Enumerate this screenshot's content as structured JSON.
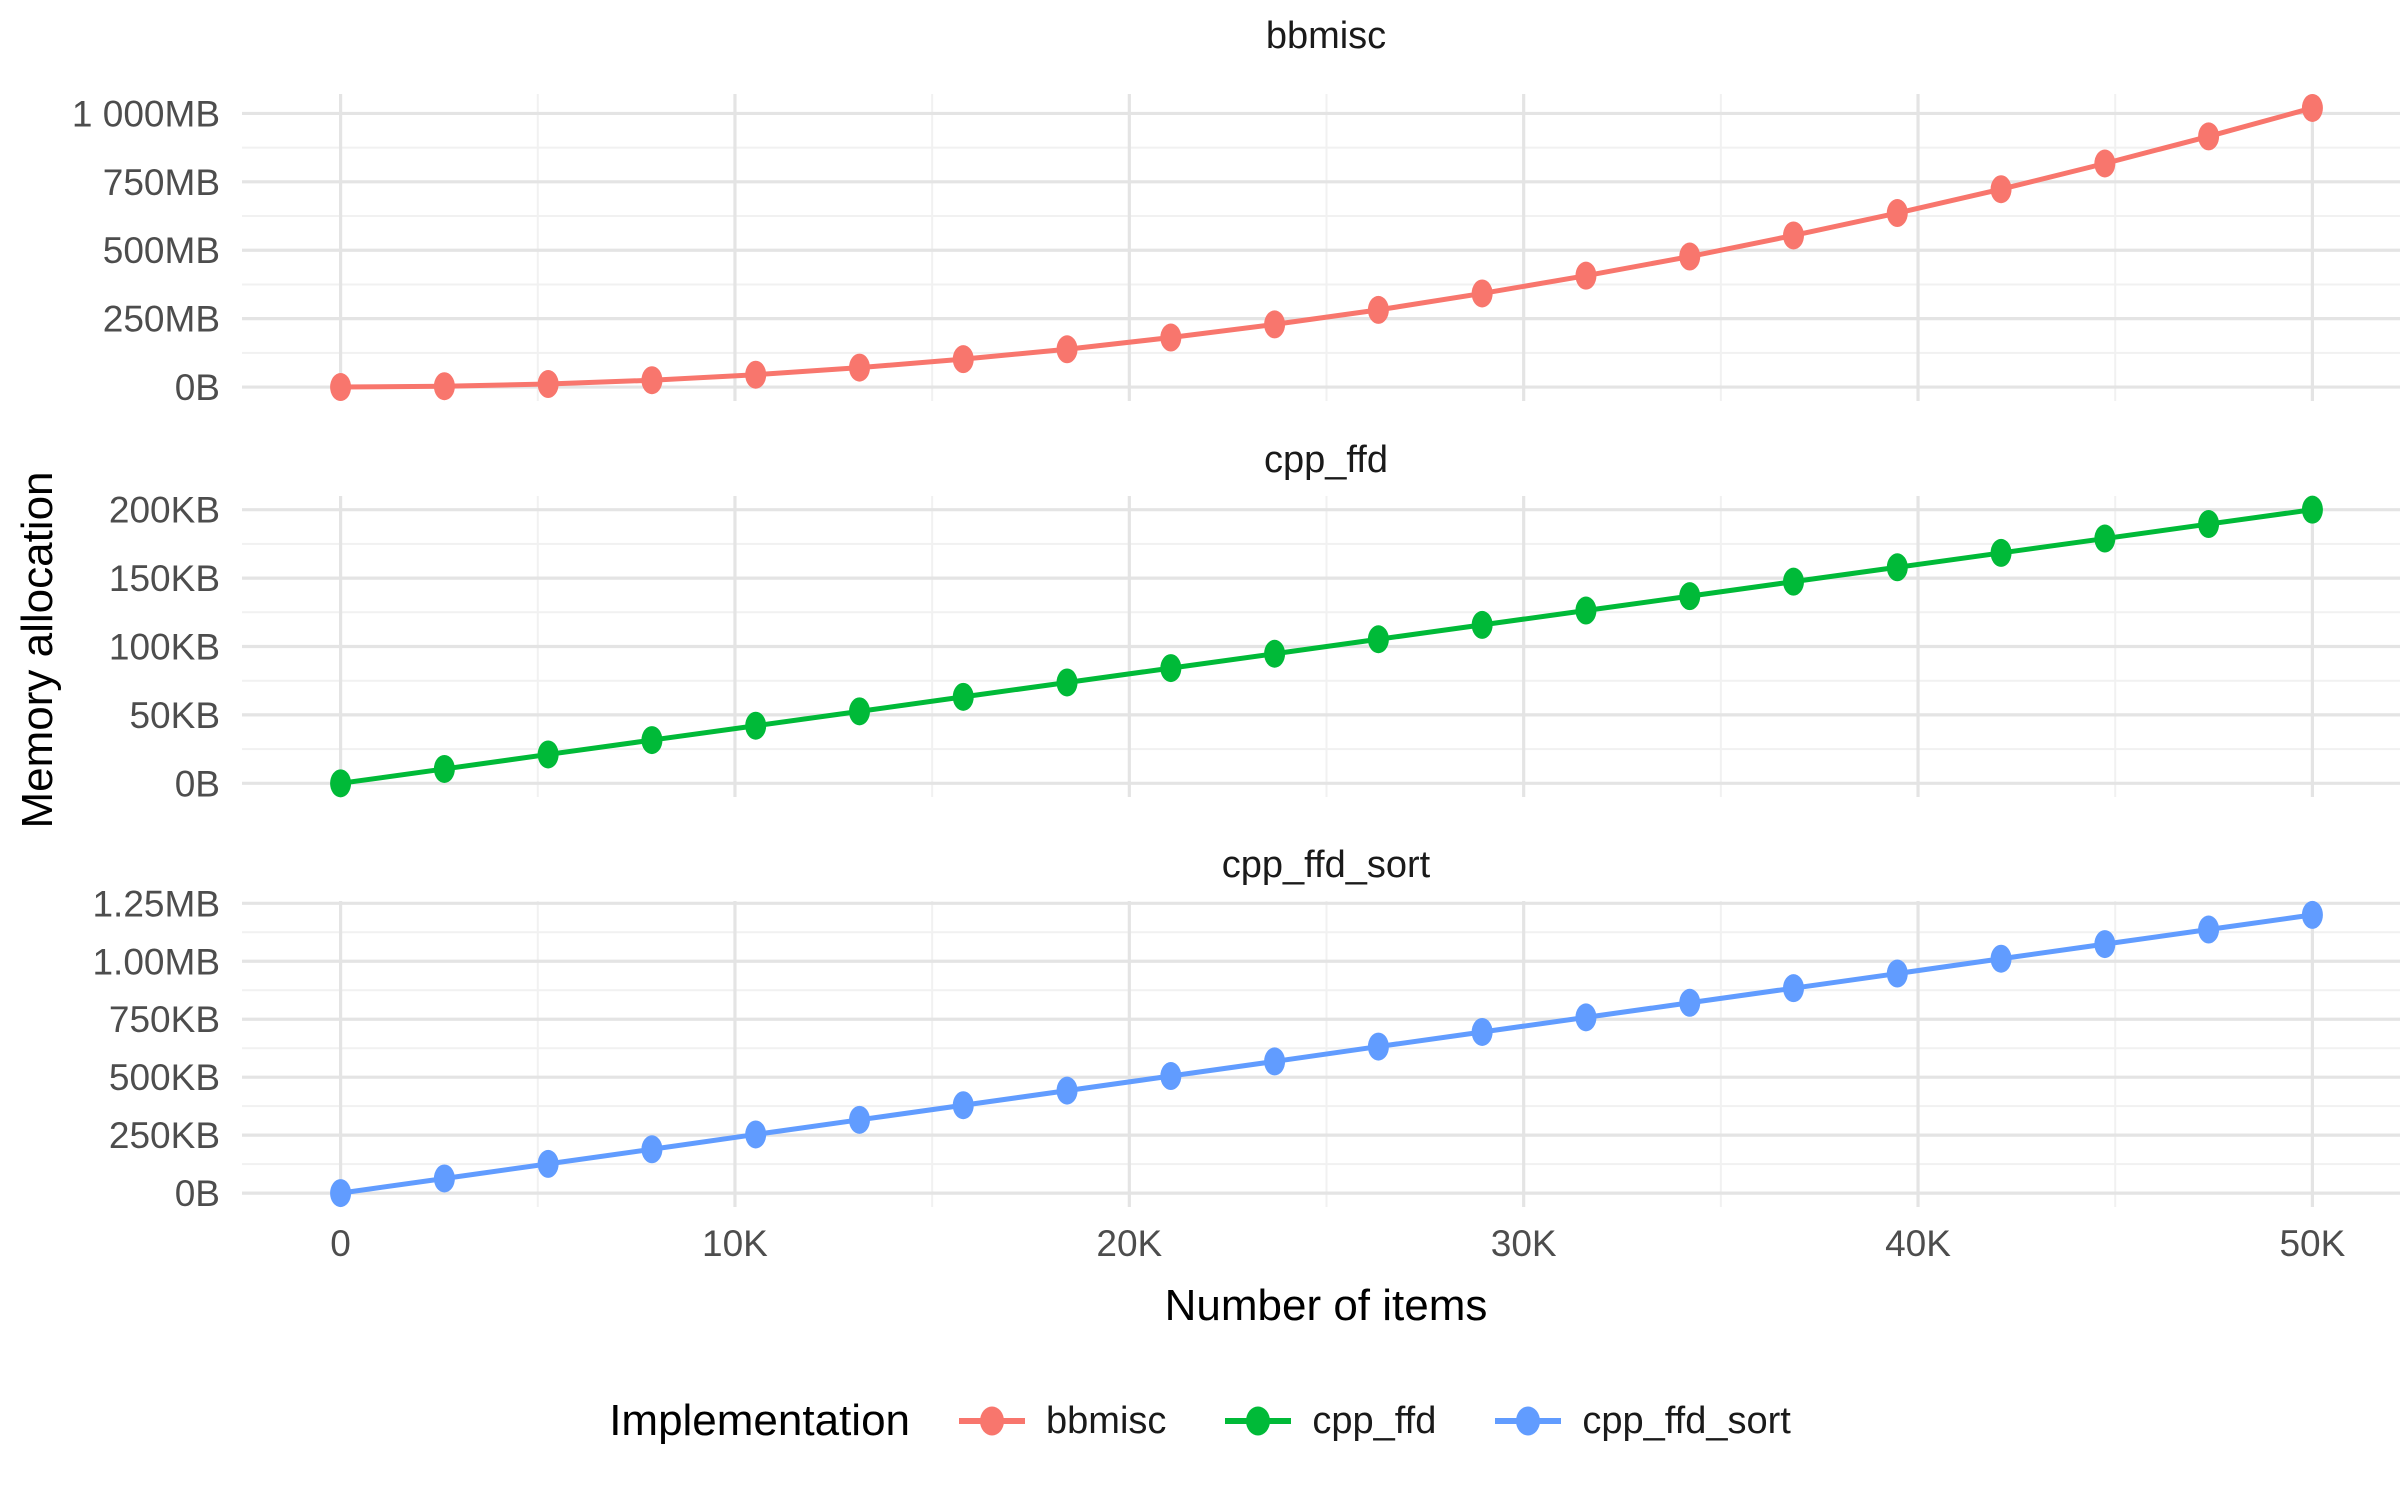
{
  "figure": {
    "y_axis_title": "Memory allocation",
    "x_axis_title": "Number of items",
    "legend": {
      "title": "Implementation",
      "items": [
        {
          "label": "bbmisc",
          "color": "#F8766D"
        },
        {
          "label": "cpp_ffd",
          "color": "#00BA38"
        },
        {
          "label": "cpp_ffd_sort",
          "color": "#619CFF"
        }
      ]
    },
    "colors": {
      "grid_major": "#E4E4E4",
      "grid_minor": "#F1F1F1",
      "tick_text": "#4D4D4D",
      "title_text": "#1A1A1A"
    }
  },
  "x_axis": {
    "ticks": {
      "values": [
        0,
        10000,
        20000,
        30000,
        40000,
        50000
      ],
      "labels": [
        "0",
        "10K",
        "20K",
        "30K",
        "40K",
        "50K"
      ]
    },
    "minor": [
      5000,
      15000,
      25000,
      35000,
      45000
    ],
    "xlim": [
      -2500,
      52500
    ]
  },
  "chart_data": [
    {
      "type": "line",
      "facet": "bbmisc",
      "y_unit": "MB",
      "ylim": [
        -51,
        1071
      ],
      "y_ticks": {
        "values": [
          0,
          250,
          500,
          750,
          1000
        ],
        "labels": [
          "0B",
          "250MB",
          "500MB",
          "750MB",
          "1 000MB"
        ]
      },
      "y_minor": [
        125,
        375,
        625,
        875
      ],
      "series": [
        {
          "name": "bbmisc",
          "color": "#F8766D",
          "x": [
            0,
            2632,
            5263,
            7895,
            10526,
            13158,
            15789,
            18421,
            21053,
            23684,
            26316,
            28947,
            31579,
            34211,
            36842,
            39474,
            42105,
            44737,
            47368,
            50000
          ],
          "y": [
            0,
            3,
            11,
            25,
            45,
            71,
            102,
            138,
            181,
            229,
            282,
            342,
            407,
            477,
            554,
            636,
            723,
            817,
            916,
            1020
          ]
        }
      ]
    },
    {
      "type": "line",
      "facet": "cpp_ffd",
      "y_unit": "KB",
      "ylim": [
        -10,
        210
      ],
      "y_ticks": {
        "values": [
          0,
          50,
          100,
          150,
          200
        ],
        "labels": [
          "0B",
          "50KB",
          "100KB",
          "150KB",
          "200KB"
        ]
      },
      "y_minor": [
        25,
        75,
        125,
        175
      ],
      "series": [
        {
          "name": "cpp_ffd",
          "color": "#00BA38",
          "x": [
            0,
            2632,
            5263,
            7895,
            10526,
            13158,
            15789,
            18421,
            21053,
            23684,
            26316,
            28947,
            31579,
            34211,
            36842,
            39474,
            42105,
            44737,
            47368,
            50000
          ],
          "y": [
            0,
            10.5,
            21.1,
            31.6,
            42.1,
            52.6,
            63.2,
            73.7,
            84.2,
            94.7,
            105.3,
            115.8,
            126.3,
            136.8,
            147.4,
            157.9,
            168.4,
            178.9,
            189.5,
            200
          ]
        }
      ]
    },
    {
      "type": "line",
      "facet": "cpp_ffd_sort",
      "y_unit": "KB",
      "ylim": [
        -60,
        1260
      ],
      "y_ticks": {
        "values": [
          0,
          250,
          500,
          750,
          1000,
          1250
        ],
        "labels": [
          "0B",
          "250KB",
          "500KB",
          "750KB",
          "1.00MB",
          "1.25MB"
        ]
      },
      "y_minor": [
        125,
        375,
        625,
        875,
        1125
      ],
      "series": [
        {
          "name": "cpp_ffd_sort",
          "color": "#619CFF",
          "x": [
            0,
            2632,
            5263,
            7895,
            10526,
            13158,
            15789,
            18421,
            21053,
            23684,
            26316,
            28947,
            31579,
            34211,
            36842,
            39474,
            42105,
            44737,
            47368,
            50000
          ],
          "y": [
            0,
            63,
            126,
            189,
            253,
            316,
            379,
            442,
            505,
            568,
            632,
            695,
            758,
            821,
            884,
            947,
            1011,
            1074,
            1137,
            1200
          ]
        }
      ]
    }
  ]
}
